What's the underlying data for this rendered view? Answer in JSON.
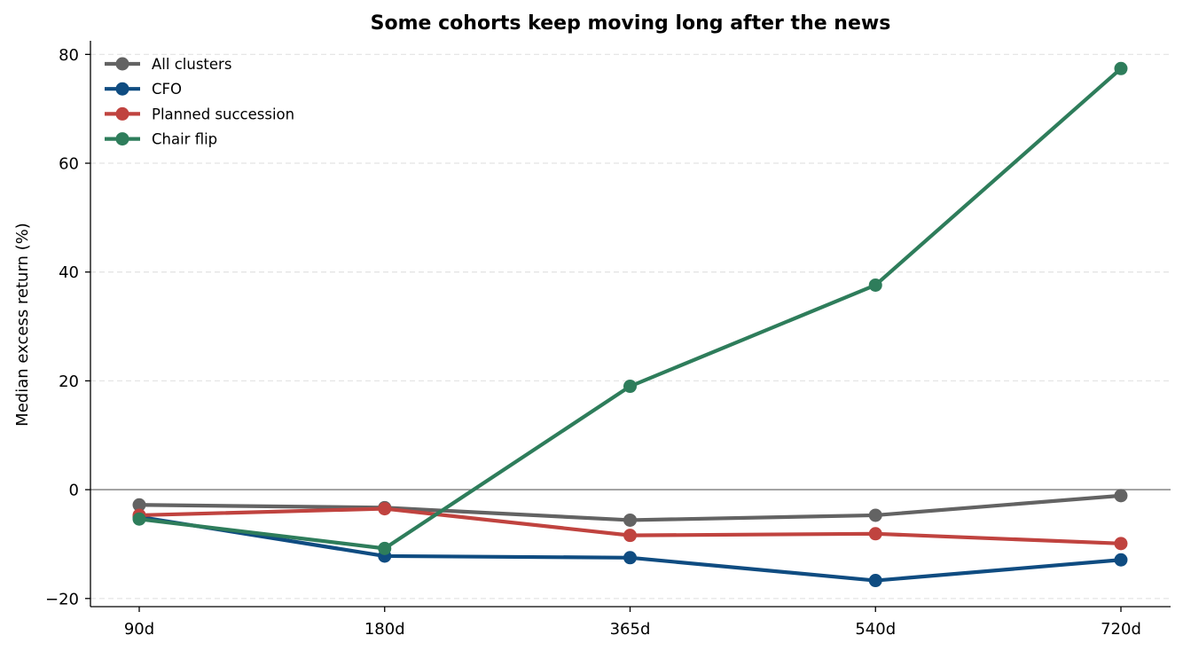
{
  "chart_data": {
    "type": "line",
    "title": "Some cohorts keep moving long after the news",
    "xlabel": "",
    "ylabel": "Median excess return (%)",
    "categories": [
      "90d",
      "180d",
      "365d",
      "540d",
      "720d"
    ],
    "ylim": [
      -21.5,
      82.5
    ],
    "yticks": [
      -20,
      0,
      20,
      40,
      60,
      80
    ],
    "ytick_labels": [
      "−20",
      "0",
      "20",
      "40",
      "60",
      "80"
    ],
    "grid": "y-dashed",
    "legend": "top-left",
    "zero_line": true,
    "series": [
      {
        "name": "All clusters",
        "color": "#636363",
        "values": [
          -2.8,
          -3.3,
          -5.6,
          -4.7,
          -1.1
        ]
      },
      {
        "name": "CFO",
        "color": "#0f4c81",
        "values": [
          -5.0,
          -12.2,
          -12.5,
          -16.7,
          -12.9
        ]
      },
      {
        "name": "Planned succession",
        "color": "#c0433f",
        "values": [
          -4.7,
          -3.5,
          -8.4,
          -8.1,
          -9.9
        ]
      },
      {
        "name": "Chair flip",
        "color": "#2e7d5b",
        "values": [
          -5.4,
          -10.8,
          19.0,
          37.6,
          77.4
        ]
      }
    ]
  }
}
